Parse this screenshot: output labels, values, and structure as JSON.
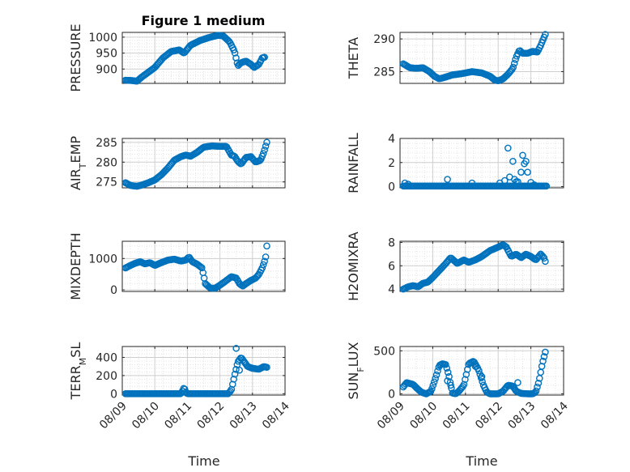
{
  "figure": {
    "title": "Figure 1 medium",
    "xlabel": "Time",
    "x_tick_labels": [
      "08/09",
      "08/10",
      "08/11",
      "08/12",
      "08/13",
      "08/14"
    ],
    "marker_color": "#0072BD",
    "grid_color": "#d9d9d9"
  },
  "chart_data": [
    {
      "type": "scatter",
      "name": "pressure",
      "ylabel": "PRESSURE",
      "ylabel_main": "PRESSURE",
      "ylabel_sub": "",
      "ylabel_tail": "",
      "xlim": [
        0,
        5
      ],
      "ylim": [
        855,
        1015
      ],
      "yticks": [
        900,
        950,
        1000
      ],
      "anchors": [
        [
          0.1,
          865
        ],
        [
          0.3,
          864
        ],
        [
          0.45,
          862
        ],
        [
          0.6,
          875
        ],
        [
          0.8,
          890
        ],
        [
          1.0,
          905
        ],
        [
          1.25,
          935
        ],
        [
          1.5,
          955
        ],
        [
          1.75,
          960
        ],
        [
          1.9,
          950
        ],
        [
          2.1,
          975
        ],
        [
          2.4,
          990
        ],
        [
          2.7,
          1000
        ],
        [
          2.95,
          1006
        ],
        [
          3.1,
          1004
        ],
        [
          3.3,
          985
        ],
        [
          3.45,
          955
        ],
        [
          3.55,
          910
        ],
        [
          3.65,
          920
        ],
        [
          3.8,
          925
        ],
        [
          3.95,
          915
        ],
        [
          4.05,
          905
        ],
        [
          4.2,
          915
        ],
        [
          4.3,
          935
        ],
        [
          4.4,
          938
        ]
      ]
    },
    {
      "type": "scatter",
      "name": "theta",
      "ylabel": "THETA",
      "ylabel_main": "THETA",
      "ylabel_sub": "",
      "ylabel_tail": "",
      "xlim": [
        0,
        5
      ],
      "ylim": [
        283.2,
        291
      ],
      "yticks": [
        285,
        290
      ],
      "anchors": [
        [
          0.1,
          286.2
        ],
        [
          0.3,
          285.6
        ],
        [
          0.5,
          285.5
        ],
        [
          0.7,
          285.6
        ],
        [
          0.9,
          285.0
        ],
        [
          1.05,
          284.3
        ],
        [
          1.2,
          283.9
        ],
        [
          1.35,
          284.1
        ],
        [
          1.6,
          284.5
        ],
        [
          1.9,
          284.7
        ],
        [
          2.2,
          285.0
        ],
        [
          2.5,
          284.8
        ],
        [
          2.75,
          284.3
        ],
        [
          2.9,
          283.7
        ],
        [
          3.0,
          283.6
        ],
        [
          3.15,
          283.9
        ],
        [
          3.3,
          284.6
        ],
        [
          3.45,
          285.5
        ],
        [
          3.55,
          287.2
        ],
        [
          3.65,
          288.3
        ],
        [
          3.75,
          287.8
        ],
        [
          3.9,
          287.8
        ],
        [
          4.05,
          288.1
        ],
        [
          4.2,
          288.0
        ],
        [
          4.3,
          289.0
        ],
        [
          4.45,
          290.8
        ]
      ]
    },
    {
      "type": "scatter",
      "name": "air_temp",
      "ylabel": "AIR_TEMP",
      "ylabel_main": "AIR",
      "ylabel_sub": "T",
      "ylabel_tail": "EMP",
      "xlim": [
        0,
        5
      ],
      "ylim": [
        273.5,
        286
      ],
      "yticks": [
        275,
        280,
        285
      ],
      "anchors": [
        [
          0.1,
          274.8
        ],
        [
          0.25,
          274.1
        ],
        [
          0.45,
          273.9
        ],
        [
          0.6,
          274.2
        ],
        [
          0.8,
          274.8
        ],
        [
          1.0,
          275.5
        ],
        [
          1.2,
          276.8
        ],
        [
          1.4,
          278.5
        ],
        [
          1.6,
          280.5
        ],
        [
          1.8,
          281.4
        ],
        [
          1.95,
          281.8
        ],
        [
          2.1,
          281.5
        ],
        [
          2.3,
          282.5
        ],
        [
          2.5,
          283.8
        ],
        [
          2.75,
          284.1
        ],
        [
          3.0,
          284.0
        ],
        [
          3.2,
          284.0
        ],
        [
          3.35,
          281.8
        ],
        [
          3.45,
          281.5
        ],
        [
          3.55,
          280.2
        ],
        [
          3.65,
          279.5
        ],
        [
          3.8,
          281.2
        ],
        [
          3.95,
          281.4
        ],
        [
          4.1,
          280.0
        ],
        [
          4.25,
          280.5
        ],
        [
          4.35,
          282.5
        ],
        [
          4.45,
          285.3
        ]
      ]
    },
    {
      "type": "scatter",
      "name": "rainfall",
      "ylabel": "RAINFALL",
      "ylabel_main": "RAINFALL",
      "ylabel_sub": "",
      "ylabel_tail": "",
      "xlim": [
        0,
        5
      ],
      "ylim": [
        -0.1,
        4
      ],
      "yticks": [
        0,
        2,
        4
      ],
      "anchors": [
        [
          0.1,
          0.05
        ],
        [
          4.5,
          0.05
        ]
      ],
      "extra_points": [
        [
          0.15,
          0.3
        ],
        [
          0.25,
          0.2
        ],
        [
          1.45,
          0.6
        ],
        [
          2.2,
          0.3
        ],
        [
          3.05,
          0.3
        ],
        [
          3.2,
          0.5
        ],
        [
          3.3,
          3.2
        ],
        [
          3.35,
          0.8
        ],
        [
          3.45,
          2.1
        ],
        [
          3.5,
          0.6
        ],
        [
          3.55,
          0.4
        ],
        [
          3.6,
          0.4
        ],
        [
          3.7,
          1.2
        ],
        [
          3.75,
          2.6
        ],
        [
          3.8,
          1.9
        ],
        [
          3.85,
          2.1
        ],
        [
          3.9,
          1.2
        ],
        [
          4.0,
          0.35
        ],
        [
          4.1,
          0.15
        ]
      ]
    },
    {
      "type": "scatter",
      "name": "mixdepth",
      "ylabel": "MIXDEPTH",
      "ylabel_main": "MIXDEPTH",
      "ylabel_sub": "",
      "ylabel_tail": "",
      "xlim": [
        0,
        5
      ],
      "ylim": [
        -50,
        1550
      ],
      "yticks": [
        0,
        1000
      ],
      "anchors": [
        [
          0.1,
          700
        ],
        [
          0.25,
          780
        ],
        [
          0.4,
          850
        ],
        [
          0.55,
          900
        ],
        [
          0.7,
          830
        ],
        [
          0.85,
          870
        ],
        [
          1.0,
          780
        ],
        [
          1.2,
          870
        ],
        [
          1.4,
          950
        ],
        [
          1.6,
          980
        ],
        [
          1.8,
          920
        ],
        [
          1.95,
          950
        ],
        [
          2.05,
          1050
        ],
        [
          2.15,
          900
        ],
        [
          2.3,
          820
        ],
        [
          2.45,
          700
        ],
        [
          2.55,
          200
        ],
        [
          2.7,
          60
        ],
        [
          2.85,
          50
        ],
        [
          3.0,
          150
        ],
        [
          3.2,
          300
        ],
        [
          3.35,
          420
        ],
        [
          3.5,
          380
        ],
        [
          3.6,
          200
        ],
        [
          3.7,
          120
        ],
        [
          3.8,
          200
        ],
        [
          3.95,
          300
        ],
        [
          4.1,
          380
        ],
        [
          4.2,
          500
        ],
        [
          4.3,
          700
        ],
        [
          4.4,
          1000
        ],
        [
          4.45,
          1500
        ]
      ]
    },
    {
      "type": "scatter",
      "name": "h2omixra",
      "ylabel": "H2OMIXRA",
      "ylabel_main": "H2OMIXRA",
      "ylabel_sub": "",
      "ylabel_tail": "",
      "xlim": [
        0,
        5
      ],
      "ylim": [
        3.8,
        8.1
      ],
      "yticks": [
        4,
        6,
        8
      ],
      "anchors": [
        [
          0.1,
          4.0
        ],
        [
          0.25,
          4.2
        ],
        [
          0.4,
          4.3
        ],
        [
          0.55,
          4.2
        ],
        [
          0.7,
          4.5
        ],
        [
          0.85,
          4.6
        ],
        [
          1.0,
          5.0
        ],
        [
          1.2,
          5.6
        ],
        [
          1.4,
          6.2
        ],
        [
          1.55,
          6.7
        ],
        [
          1.75,
          6.2
        ],
        [
          1.95,
          6.5
        ],
        [
          2.1,
          6.3
        ],
        [
          2.3,
          6.5
        ],
        [
          2.5,
          6.8
        ],
        [
          2.75,
          7.3
        ],
        [
          3.0,
          7.6
        ],
        [
          3.15,
          7.8
        ],
        [
          3.25,
          7.6
        ],
        [
          3.4,
          6.8
        ],
        [
          3.55,
          7.0
        ],
        [
          3.7,
          6.7
        ],
        [
          3.85,
          7.0
        ],
        [
          4.0,
          6.8
        ],
        [
          4.15,
          6.5
        ],
        [
          4.3,
          7.0
        ],
        [
          4.4,
          6.7
        ],
        [
          4.45,
          6.3
        ]
      ]
    },
    {
      "type": "scatter",
      "name": "terr_msl",
      "ylabel": "TERR_MSL",
      "ylabel_main": "TERR",
      "ylabel_sub": "M",
      "ylabel_tail": "SL",
      "xlim": [
        0,
        5
      ],
      "ylim": [
        -15,
        520
      ],
      "yticks": [
        0,
        200,
        400
      ],
      "anchors": [
        [
          0.1,
          0
        ],
        [
          1.8,
          0
        ],
        [
          1.85,
          30
        ],
        [
          1.9,
          70
        ],
        [
          1.95,
          20
        ],
        [
          2.0,
          0
        ],
        [
          3.25,
          0
        ],
        [
          3.35,
          40
        ],
        [
          3.45,
          200
        ],
        [
          3.55,
          350
        ],
        [
          3.65,
          400
        ],
        [
          3.75,
          350
        ],
        [
          3.85,
          300
        ],
        [
          4.0,
          280
        ],
        [
          4.2,
          270
        ],
        [
          4.35,
          300
        ],
        [
          4.45,
          290
        ]
      ],
      "extra_points": [
        [
          3.5,
          500
        ],
        [
          3.6,
          260
        ]
      ]
    },
    {
      "type": "scatter",
      "name": "sun_flux",
      "ylabel": "SUN_FLUX",
      "ylabel_main": "SUN",
      "ylabel_sub": "F",
      "ylabel_tail": "LUX",
      "xlim": [
        0,
        5
      ],
      "ylim": [
        -15,
        550
      ],
      "yticks": [
        0,
        500
      ],
      "anchors": [
        [
          0.1,
          80
        ],
        [
          0.2,
          130
        ],
        [
          0.3,
          120
        ],
        [
          0.4,
          110
        ],
        [
          0.5,
          70
        ],
        [
          0.65,
          20
        ],
        [
          0.8,
          0
        ],
        [
          0.95,
          30
        ],
        [
          1.1,
          200
        ],
        [
          1.2,
          330
        ],
        [
          1.3,
          350
        ],
        [
          1.4,
          340
        ],
        [
          1.5,
          200
        ],
        [
          1.6,
          10
        ],
        [
          1.7,
          0
        ],
        [
          1.8,
          30
        ],
        [
          1.95,
          100
        ],
        [
          2.1,
          350
        ],
        [
          2.25,
          380
        ],
        [
          2.4,
          280
        ],
        [
          2.55,
          100
        ],
        [
          2.65,
          20
        ],
        [
          2.75,
          0
        ],
        [
          3.0,
          0
        ],
        [
          3.15,
          30
        ],
        [
          3.3,
          100
        ],
        [
          3.45,
          90
        ],
        [
          3.55,
          30
        ],
        [
          3.7,
          5
        ],
        [
          3.9,
          0
        ],
        [
          4.05,
          0
        ],
        [
          4.15,
          20
        ],
        [
          4.25,
          150
        ],
        [
          4.35,
          350
        ],
        [
          4.45,
          500
        ]
      ],
      "extra_points": [
        [
          1.45,
          150
        ],
        [
          1.55,
          100
        ],
        [
          2.3,
          320
        ],
        [
          2.5,
          200
        ],
        [
          3.6,
          130
        ]
      ]
    }
  ]
}
